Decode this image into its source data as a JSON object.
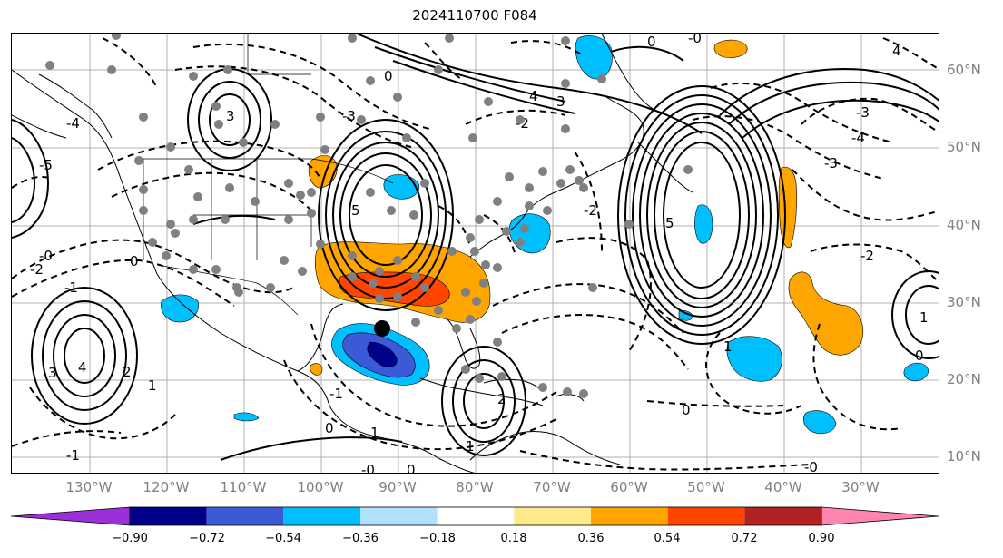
{
  "title": "2024110700 F084",
  "lat_labels": [
    "60°N",
    "50°N",
    "40°N",
    "30°N",
    "20°N",
    "10°N"
  ],
  "lon_labels": [
    "130°W",
    "120°W",
    "110°W",
    "100°W",
    "90°W",
    "80°W",
    "70°W",
    "60°W",
    "50°W",
    "40°W",
    "30°W"
  ],
  "colorbar": {
    "ticks": [
      "−0.90",
      "−0.72",
      "−0.54",
      "−0.36",
      "−0.18",
      "0.18",
      "0.36",
      "0.54",
      "0.72",
      "0.90"
    ],
    "colors": {
      "under": "#9b30d9",
      "bins": [
        "#00008b",
        "#3a5ad8",
        "#00bfff",
        "#b0e2ff",
        "#ffffff",
        "#ffe98a",
        "#ffa500",
        "#ff4500",
        "#b22222"
      ],
      "over": "#ff85b0"
    }
  },
  "contour_labels": [
    "-0",
    "-1",
    "-2",
    "-3",
    "-4",
    "-5",
    "0",
    "1",
    "2",
    "3",
    "4",
    "5"
  ],
  "colors": {
    "grid": "#b0b0b0",
    "coast": "#000000",
    "station_dot": "#808080",
    "center_marker": "#000000"
  }
}
